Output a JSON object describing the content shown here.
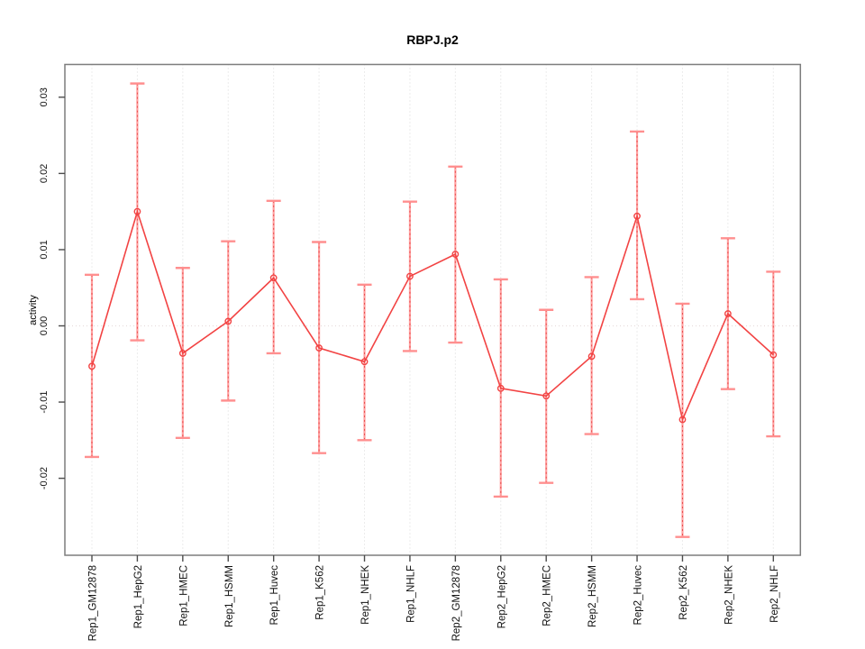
{
  "chart_data": {
    "type": "line",
    "title": "RBPJ.p2",
    "xlabel": "",
    "ylabel": "activity",
    "categories": [
      "Rep1_GM12878",
      "Rep1_HepG2",
      "Rep1_HMEC",
      "Rep1_HSMM",
      "Rep1_Huvec",
      "Rep1_K562",
      "Rep1_NHEK",
      "Rep1_NHLF",
      "Rep2_GM12878",
      "Rep2_HepG2",
      "Rep2_HMEC",
      "Rep2_HSMM",
      "Rep2_Huvec",
      "Rep2_K562",
      "Rep2_NHEK",
      "Rep2_NHLF"
    ],
    "series": [
      {
        "name": "activity",
        "values": [
          -0.0053,
          0.015,
          -0.0036,
          0.0006,
          0.0063,
          -0.0029,
          -0.0047,
          0.0065,
          0.0094,
          -0.0082,
          -0.0092,
          -0.004,
          0.0144,
          -0.0123,
          0.0016,
          -0.0038
        ],
        "upper": [
          0.0067,
          0.0318,
          0.0076,
          0.0111,
          0.0164,
          0.011,
          0.0054,
          0.0163,
          0.0209,
          0.0061,
          0.0021,
          0.0064,
          0.0255,
          0.0029,
          0.0115,
          0.0071
        ],
        "lower": [
          -0.0172,
          -0.0019,
          -0.0147,
          -0.0098,
          -0.0036,
          -0.0167,
          -0.015,
          -0.0033,
          -0.0022,
          -0.0224,
          -0.0206,
          -0.0142,
          0.0035,
          -0.0277,
          -0.0083,
          -0.0145
        ]
      }
    ],
    "ylim": [
      -0.0301,
      0.0343
    ],
    "yticks": {
      "values": [
        0.03,
        0.02,
        0.01,
        0.0,
        -0.01,
        -0.02
      ],
      "labels": [
        "0.03",
        "0.02",
        "0.01",
        "0.00",
        "-0.01",
        "-0.02"
      ]
    },
    "grid": "vertical-dotted-per-category",
    "zero_reference_line": true,
    "legend": "none",
    "marker": "open-circle",
    "colors": {
      "line": "#f24343",
      "marker": "#f24343",
      "bar_light": "#ffa0a0",
      "bar_dash": "#e84b4b",
      "cap": "#ff8f8f",
      "grid": "#d9d9d9",
      "zero_line": "#e7dddd",
      "box": "#7d7d7d",
      "tick": "#4c4c4c",
      "text": "#000000"
    }
  }
}
